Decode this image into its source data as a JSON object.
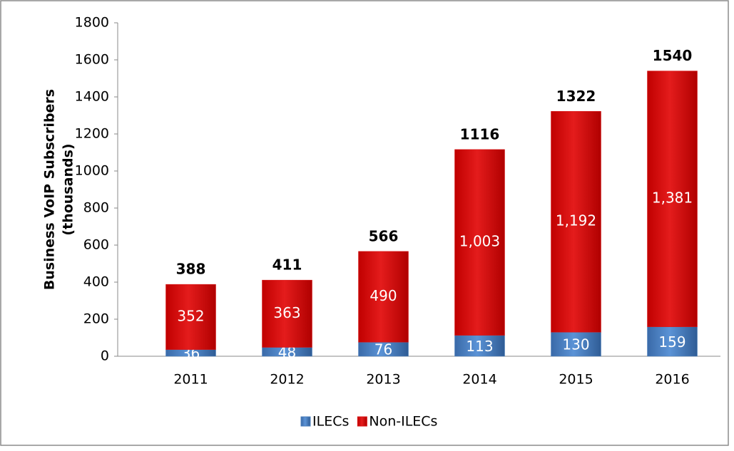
{
  "chart_data": {
    "type": "stacked_bar",
    "ylabel": [
      "Business VoIP Subscribers",
      "(thousands)"
    ],
    "categories": [
      "2011",
      "2012",
      "2013",
      "2014",
      "2015",
      "2016"
    ],
    "series": [
      {
        "name": "ILECs",
        "color": "#4a7ebb",
        "values": [
          36,
          48,
          76,
          113,
          130,
          159
        ]
      },
      {
        "name": "Non-ILECs",
        "color": "#d91414",
        "values": [
          352,
          363,
          490,
          1003,
          1192,
          1381
        ],
        "value_labels": [
          "352",
          "363",
          "490",
          "1,003",
          "1,192",
          "1,381"
        ]
      }
    ],
    "totals": [
      388,
      411,
      566,
      1116,
      1322,
      1540
    ],
    "ylim": [
      0,
      1800
    ],
    "yticks": [
      0,
      200,
      400,
      600,
      800,
      1000,
      1200,
      1400,
      1600,
      1800
    ],
    "grid": false,
    "legend": "bottom"
  }
}
